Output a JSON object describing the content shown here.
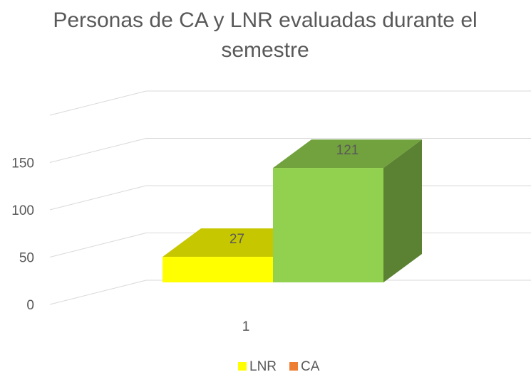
{
  "chart_data": {
    "type": "bar3d",
    "title": [
      "Personas de CA y LNR evaluadas durante el",
      "semestre"
    ],
    "categories": [
      "1"
    ],
    "series": [
      {
        "name": "LNR",
        "color": "#ffff00",
        "legend_color": "#ffff00",
        "values": [
          27
        ]
      },
      {
        "name": "CA",
        "color": "#92d050",
        "legend_color": "#ed7d31",
        "values": [
          121
        ]
      }
    ],
    "ylim": [
      0,
      200
    ],
    "yticks": [
      0,
      50,
      100,
      150
    ],
    "grid": true,
    "legend": "bottom"
  }
}
